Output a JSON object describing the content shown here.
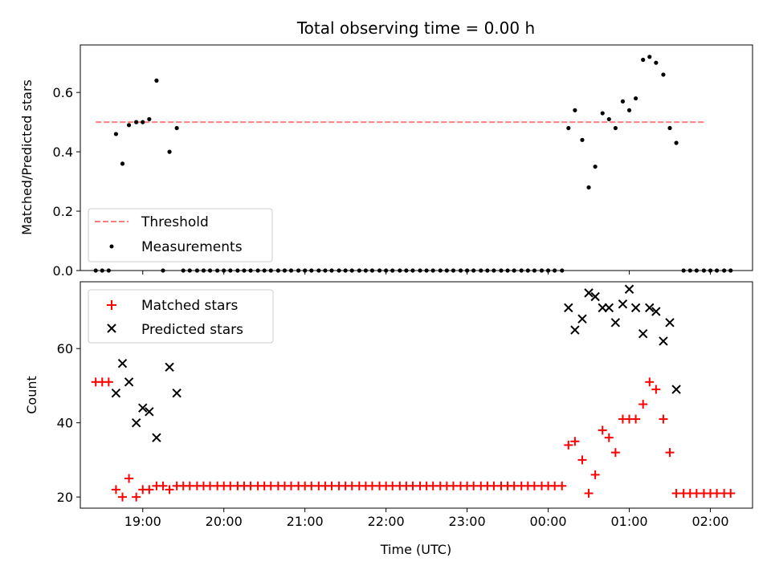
{
  "chart_data": [
    {
      "type": "scatter",
      "title": "Total observing time = 0.00 h",
      "xlabel": "",
      "ylabel": "Matched/Predicted stars",
      "ylim": [
        0,
        0.76
      ],
      "yticks": [
        0.0,
        0.2,
        0.4,
        0.6
      ],
      "ytick_labels": [
        "0.0",
        "0.2",
        "0.4",
        "0.6"
      ],
      "xlim": [
        18.23,
        26.52
      ],
      "xticks": [
        19,
        20,
        21,
        22,
        23,
        24,
        25,
        26
      ],
      "legend": {
        "placement": "lower-left",
        "entries": [
          "Threshold",
          "Measurements"
        ]
      },
      "series": [
        {
          "name": "Threshold",
          "style": "dashed-line",
          "color": "#ff7f7f",
          "x": [
            18.42,
            25.93
          ],
          "y": [
            0.5,
            0.5
          ]
        },
        {
          "name": "Measurements",
          "style": "dot",
          "color": "#000000",
          "x": [
            18.42,
            18.5,
            18.58,
            18.67,
            18.75,
            18.83,
            18.92,
            19.0,
            19.08,
            19.17,
            19.25,
            19.33,
            19.42,
            19.5,
            19.58,
            19.67,
            19.75,
            19.83,
            19.92,
            20.0,
            20.08,
            20.17,
            20.25,
            20.33,
            20.42,
            20.5,
            20.58,
            20.67,
            20.75,
            20.83,
            20.92,
            21.0,
            21.08,
            21.17,
            21.25,
            21.33,
            21.42,
            21.5,
            21.58,
            21.67,
            21.75,
            21.83,
            21.92,
            22.0,
            22.08,
            22.17,
            22.25,
            22.33,
            22.42,
            22.5,
            22.58,
            22.67,
            22.75,
            22.83,
            22.92,
            23.0,
            23.08,
            23.17,
            23.25,
            23.33,
            23.42,
            23.5,
            23.58,
            23.67,
            23.75,
            23.83,
            23.92,
            24.0,
            24.08,
            24.17,
            24.25,
            24.33,
            24.42,
            24.5,
            24.58,
            24.67,
            24.75,
            24.83,
            24.92,
            25.0,
            25.08,
            25.17,
            25.25,
            25.33,
            25.42,
            25.5,
            25.58,
            25.67,
            25.75,
            25.83,
            25.92,
            26.0,
            26.08,
            26.17,
            26.25
          ],
          "y": [
            0.0,
            0.0,
            0.0,
            0.46,
            0.36,
            0.49,
            0.5,
            0.5,
            0.51,
            0.64,
            0.0,
            0.4,
            0.48,
            0.0,
            0.0,
            0.0,
            0.0,
            0.0,
            0.0,
            0.0,
            0.0,
            0.0,
            0.0,
            0.0,
            0.0,
            0.0,
            0.0,
            0.0,
            0.0,
            0.0,
            0.0,
            0.0,
            0.0,
            0.0,
            0.0,
            0.0,
            0.0,
            0.0,
            0.0,
            0.0,
            0.0,
            0.0,
            0.0,
            0.0,
            0.0,
            0.0,
            0.0,
            0.0,
            0.0,
            0.0,
            0.0,
            0.0,
            0.0,
            0.0,
            0.0,
            0.0,
            0.0,
            0.0,
            0.0,
            0.0,
            0.0,
            0.0,
            0.0,
            0.0,
            0.0,
            0.0,
            0.0,
            0.0,
            0.0,
            0.0,
            0.48,
            0.54,
            0.44,
            0.28,
            0.35,
            0.53,
            0.51,
            0.48,
            0.57,
            0.54,
            0.58,
            0.71,
            0.72,
            0.7,
            0.66,
            0.48,
            0.43,
            0.0,
            0.0,
            0.0,
            0.0,
            0.0,
            0.0,
            0.0,
            0.0
          ]
        }
      ]
    },
    {
      "type": "scatter",
      "title": "",
      "xlabel": "Time (UTC)",
      "ylabel": "Count",
      "ylim": [
        17,
        78
      ],
      "yticks": [
        20,
        40,
        60
      ],
      "ytick_labels": [
        "20",
        "40",
        "60"
      ],
      "xlim": [
        18.23,
        26.52
      ],
      "xticks": [
        19,
        20,
        21,
        22,
        23,
        24,
        25,
        26
      ],
      "xtick_labels": [
        "19:00",
        "20:00",
        "21:00",
        "22:00",
        "23:00",
        "00:00",
        "01:00",
        "02:00"
      ],
      "legend": {
        "placement": "upper-left",
        "entries": [
          "Matched stars",
          "Predicted stars"
        ]
      },
      "series": [
        {
          "name": "Matched stars",
          "style": "plus",
          "color": "#ff0000",
          "x": [
            18.42,
            18.5,
            18.58,
            18.67,
            18.75,
            18.83,
            18.92,
            19.0,
            19.08,
            19.17,
            19.25,
            19.33,
            19.42,
            19.5,
            19.58,
            19.67,
            19.75,
            19.83,
            19.92,
            20.0,
            20.08,
            20.17,
            20.25,
            20.33,
            20.42,
            20.5,
            20.58,
            20.67,
            20.75,
            20.83,
            20.92,
            21.0,
            21.08,
            21.17,
            21.25,
            21.33,
            21.42,
            21.5,
            21.58,
            21.67,
            21.75,
            21.83,
            21.92,
            22.0,
            22.08,
            22.17,
            22.25,
            22.33,
            22.42,
            22.5,
            22.58,
            22.67,
            22.75,
            22.83,
            22.92,
            23.0,
            23.08,
            23.17,
            23.25,
            23.33,
            23.42,
            23.5,
            23.58,
            23.67,
            23.75,
            23.83,
            23.92,
            24.0,
            24.08,
            24.17,
            24.25,
            24.33,
            24.42,
            24.5,
            24.58,
            24.67,
            24.75,
            24.83,
            24.92,
            25.0,
            25.08,
            25.17,
            25.25,
            25.33,
            25.42,
            25.5,
            25.58,
            25.67,
            25.75,
            25.83,
            25.92,
            26.0,
            26.08,
            26.17,
            26.25
          ],
          "y": [
            51,
            51,
            51,
            22,
            20,
            25,
            20,
            22,
            22,
            23,
            23,
            22,
            23,
            23,
            23,
            23,
            23,
            23,
            23,
            23,
            23,
            23,
            23,
            23,
            23,
            23,
            23,
            23,
            23,
            23,
            23,
            23,
            23,
            23,
            23,
            23,
            23,
            23,
            23,
            23,
            23,
            23,
            23,
            23,
            23,
            23,
            23,
            23,
            23,
            23,
            23,
            23,
            23,
            23,
            23,
            23,
            23,
            23,
            23,
            23,
            23,
            23,
            23,
            23,
            23,
            23,
            23,
            23,
            23,
            23,
            34,
            35,
            30,
            21,
            26,
            38,
            36,
            32,
            41,
            41,
            41,
            45,
            51,
            49,
            41,
            32,
            21,
            21,
            21,
            21,
            21,
            21,
            21,
            21,
            21
          ]
        },
        {
          "name": "Predicted stars",
          "style": "x",
          "color": "#000000",
          "x": [
            18.67,
            18.75,
            18.83,
            18.92,
            19.0,
            19.08,
            19.17,
            19.33,
            19.42,
            24.25,
            24.33,
            24.42,
            24.5,
            24.58,
            24.67,
            24.75,
            24.83,
            24.92,
            25.0,
            25.08,
            25.17,
            25.25,
            25.33,
            25.42,
            25.5,
            25.58
          ],
          "y": [
            48,
            56,
            51,
            40,
            44,
            43,
            36,
            55,
            48,
            71,
            65,
            68,
            75,
            74,
            71,
            71,
            67,
            72,
            76,
            71,
            64,
            71,
            70,
            62,
            67,
            49
          ]
        }
      ]
    }
  ]
}
